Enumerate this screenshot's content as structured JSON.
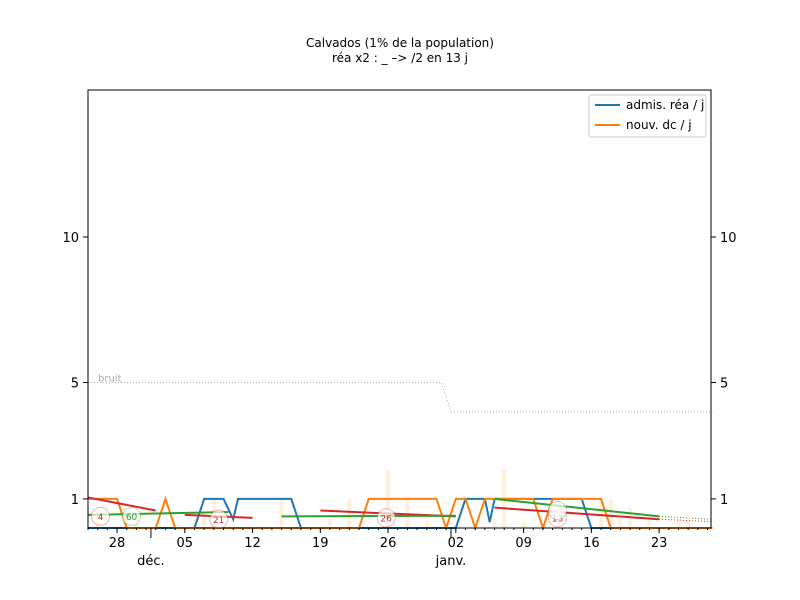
{
  "chart_data": {
    "type": "line",
    "title": "Calvados (1% de la population)",
    "subtitle": "réa x2 : _ –> /2 en 13 j",
    "ylim": [
      0,
      15
    ],
    "yticks": [
      1,
      5,
      10
    ],
    "xticks": [
      {
        "day": 28,
        "label": "28"
      },
      {
        "day": 35,
        "label": "05"
      },
      {
        "day": 42,
        "label": "12"
      },
      {
        "day": 49,
        "label": "19"
      },
      {
        "day": 56,
        "label": "26"
      },
      {
        "day": 63,
        "label": "02"
      },
      {
        "day": 70,
        "label": "09"
      },
      {
        "day": 77,
        "label": "16"
      },
      {
        "day": 84,
        "label": "23"
      }
    ],
    "xlim": [
      25,
      89.5
    ],
    "month_labels": [
      {
        "day": 31.5,
        "label": "déc."
      },
      {
        "day": 62.5,
        "label": "janv."
      }
    ],
    "noise_label": "bruit",
    "noise_line": [
      [
        25,
        5
      ],
      [
        61.5,
        5
      ],
      [
        62.5,
        4
      ],
      [
        89.5,
        4
      ]
    ],
    "legend": {
      "position": "top-right",
      "entries": [
        {
          "label": "admis. réa / j",
          "color": "#1f77b4"
        },
        {
          "label": "nouv. dc / j",
          "color": "#ff7f0e"
        }
      ]
    },
    "series": [
      {
        "name": "admis. réa / j",
        "color": "#1f77b4",
        "points": [
          [
            25,
            0
          ],
          [
            36,
            0
          ],
          [
            37,
            1
          ],
          [
            39,
            1
          ],
          [
            40,
            0.3
          ],
          [
            40.5,
            1
          ],
          [
            46,
            1
          ],
          [
            47,
            0
          ],
          [
            63,
            0
          ],
          [
            64,
            1
          ],
          [
            66,
            1
          ],
          [
            66.5,
            0.2
          ],
          [
            67,
            1
          ],
          [
            76,
            1
          ],
          [
            77,
            0
          ],
          [
            89.5,
            0
          ]
        ]
      },
      {
        "name": "nouv. dc / j",
        "color": "#ff7f0e",
        "points": [
          [
            25,
            1
          ],
          [
            28,
            1
          ],
          [
            29,
            0
          ],
          [
            32,
            0
          ],
          [
            33,
            1
          ],
          [
            34,
            0
          ],
          [
            53,
            0
          ],
          [
            54,
            1
          ],
          [
            61,
            1
          ],
          [
            62,
            0
          ],
          [
            63,
            1
          ],
          [
            64,
            1
          ],
          [
            65,
            0
          ],
          [
            66,
            1
          ],
          [
            71,
            1
          ],
          [
            72,
            0
          ],
          [
            73,
            1
          ],
          [
            78,
            1
          ],
          [
            79,
            0
          ],
          [
            89.5,
            0
          ]
        ]
      }
    ],
    "trends": [
      {
        "color": "#d62728",
        "points": [
          [
            25,
            1.05
          ],
          [
            32,
            0.6
          ]
        ]
      },
      {
        "color": "#d62728",
        "points": [
          [
            35,
            0.45
          ],
          [
            42,
            0.35
          ]
        ]
      },
      {
        "color": "#d62728",
        "points": [
          [
            49,
            0.6
          ],
          [
            63,
            0.4
          ]
        ]
      },
      {
        "color": "#d62728",
        "points": [
          [
            67,
            0.7
          ],
          [
            84,
            0.3
          ]
        ]
      },
      {
        "color": "#2ca02c",
        "points": [
          [
            25,
            0.45
          ],
          [
            39.5,
            0.55
          ]
        ]
      },
      {
        "color": "#2ca02c",
        "points": [
          [
            45,
            0.4
          ],
          [
            63,
            0.42
          ]
        ]
      },
      {
        "color": "#2ca02c",
        "points": [
          [
            67,
            1.0
          ],
          [
            84,
            0.4
          ]
        ]
      }
    ],
    "trend_extensions": [
      {
        "color": "#d62728",
        "points": [
          [
            84,
            0.3
          ],
          [
            89.5,
            0.22
          ]
        ]
      },
      {
        "color": "#2ca02c",
        "points": [
          [
            84,
            0.4
          ],
          [
            89.5,
            0.3
          ]
        ]
      }
    ],
    "bars": [
      {
        "day": 26,
        "h": 0.6
      },
      {
        "day": 30,
        "h": 0.4
      },
      {
        "day": 36,
        "h": 0.3
      },
      {
        "day": 37,
        "h": 0.5
      },
      {
        "day": 38,
        "h": 1.0
      },
      {
        "day": 45,
        "h": 1.0
      },
      {
        "day": 50,
        "h": 0.3
      },
      {
        "day": 52,
        "h": 1.0
      },
      {
        "day": 56,
        "h": 2.0
      },
      {
        "day": 58,
        "h": 1.0
      },
      {
        "day": 60,
        "h": 0.3
      },
      {
        "day": 67,
        "h": 0.3
      },
      {
        "day": 68,
        "h": 2.0
      },
      {
        "day": 70,
        "h": 0.2
      },
      {
        "day": 78,
        "h": 1.0
      },
      {
        "day": 79,
        "h": 1.0
      },
      {
        "day": 80,
        "h": 0.3
      },
      {
        "day": 81,
        "h": 0.7
      },
      {
        "day": 83,
        "h": 0.3
      },
      {
        "day": 86,
        "h": 0.3
      },
      {
        "day": 87,
        "h": 0.3
      }
    ],
    "annotations": [
      {
        "day": 26.3,
        "y": 0.4,
        "text": "4",
        "color": "#d62728"
      },
      {
        "day": 29.5,
        "y": 0.4,
        "text": "60",
        "color": "#2ca02c"
      },
      {
        "day": 38.5,
        "y": 0.3,
        "text": "21",
        "color": "#d62728"
      },
      {
        "day": 55.8,
        "y": 0.35,
        "text": "26",
        "color": "#d62728"
      },
      {
        "day": 73.5,
        "y": 0.35,
        "text": "13",
        "color": "#d62728"
      },
      {
        "day": 73.5,
        "y": 0.6,
        "text": "",
        "color": "#2ca02c"
      }
    ]
  }
}
